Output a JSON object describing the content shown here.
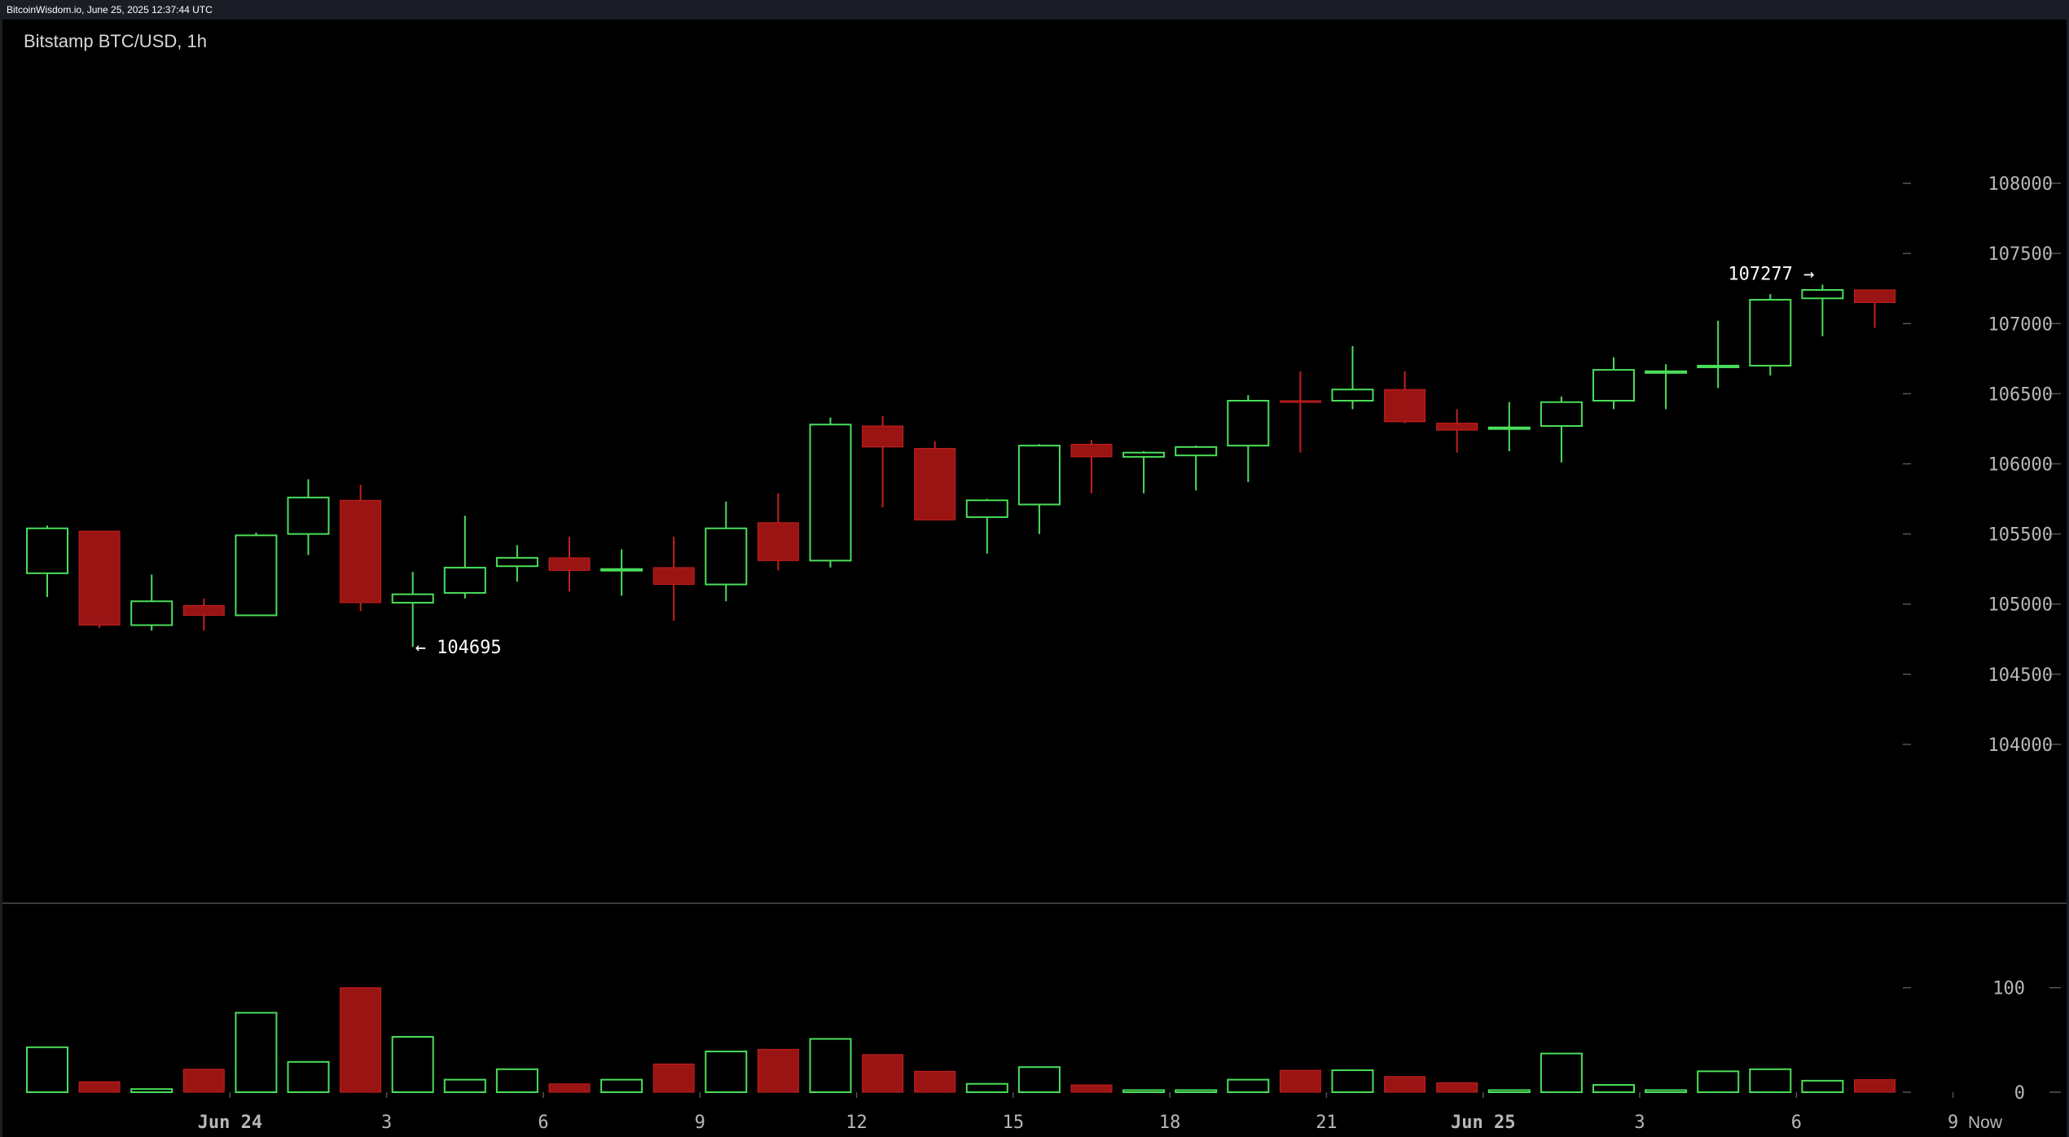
{
  "header": {
    "source_line": "BitcoinWisdom.io, June 25, 2025 12:37:44 UTC"
  },
  "chart_title": "Bitstamp BTC/USD, 1h",
  "colors": {
    "up": "#4ade5a",
    "down": "#9b1414",
    "background": "#000000",
    "frame": "#1a1d26"
  },
  "chart_data": {
    "type": "candlestick",
    "title": "Bitstamp BTC/USD, 1h",
    "price_axis": {
      "range": [
        103500,
        108500
      ],
      "ticks": [
        104000,
        104500,
        105000,
        105500,
        106000,
        106500,
        107000,
        107500,
        108000
      ]
    },
    "volume_axis": {
      "range": [
        0,
        180
      ],
      "ticks": [
        0,
        100
      ]
    },
    "x_ticks": [
      {
        "label": "Jun 24",
        "index": 3.5
      },
      {
        "label": "3",
        "index": 6.5
      },
      {
        "label": "6",
        "index": 9.5
      },
      {
        "label": "9",
        "index": 12.5
      },
      {
        "label": "12",
        "index": 15.5
      },
      {
        "label": "15",
        "index": 18.5
      },
      {
        "label": "18",
        "index": 21.5
      },
      {
        "label": "21",
        "index": 24.5
      },
      {
        "label": "Jun 25",
        "index": 27.5
      },
      {
        "label": "3",
        "index": 30.5
      },
      {
        "label": "6",
        "index": 33.5
      },
      {
        "label": "9",
        "index": 36.5
      }
    ],
    "now_label": "Now",
    "annotations": [
      {
        "text": "← 104695",
        "index": 7,
        "price": 104695
      },
      {
        "text": "107277 →",
        "index": 34,
        "price": 107277
      }
    ],
    "candles": [
      {
        "o": 105220,
        "h": 105560,
        "l": 105050,
        "c": 105540,
        "v": 43
      },
      {
        "o": 105520,
        "h": 105520,
        "l": 104830,
        "c": 104850,
        "v": 10
      },
      {
        "o": 104850,
        "h": 105210,
        "l": 104810,
        "c": 105020,
        "v": 3
      },
      {
        "o": 104990,
        "h": 105040,
        "l": 104810,
        "c": 104920,
        "v": 22
      },
      {
        "o": 104920,
        "h": 105510,
        "l": 104920,
        "c": 105490,
        "v": 76
      },
      {
        "o": 105500,
        "h": 105890,
        "l": 105350,
        "c": 105760,
        "v": 29
      },
      {
        "o": 105740,
        "h": 105850,
        "l": 104950,
        "c": 105010,
        "v": 100
      },
      {
        "o": 105010,
        "h": 105230,
        "l": 104695,
        "c": 105070,
        "v": 53
      },
      {
        "o": 105080,
        "h": 105630,
        "l": 105040,
        "c": 105260,
        "v": 12
      },
      {
        "o": 105270,
        "h": 105420,
        "l": 105160,
        "c": 105330,
        "v": 22
      },
      {
        "o": 105330,
        "h": 105480,
        "l": 105090,
        "c": 105240,
        "v": 8
      },
      {
        "o": 105240,
        "h": 105390,
        "l": 105060,
        "c": 105250,
        "v": 12
      },
      {
        "o": 105260,
        "h": 105480,
        "l": 104880,
        "c": 105140,
        "v": 27
      },
      {
        "o": 105140,
        "h": 105730,
        "l": 105020,
        "c": 105540,
        "v": 39
      },
      {
        "o": 105580,
        "h": 105790,
        "l": 105240,
        "c": 105310,
        "v": 41
      },
      {
        "o": 105310,
        "h": 106330,
        "l": 105260,
        "c": 106280,
        "v": 51
      },
      {
        "o": 106270,
        "h": 106340,
        "l": 105690,
        "c": 106120,
        "v": 36
      },
      {
        "o": 106110,
        "h": 106160,
        "l": 105600,
        "c": 105600,
        "v": 20
      },
      {
        "o": 105620,
        "h": 105750,
        "l": 105360,
        "c": 105740,
        "v": 8
      },
      {
        "o": 105710,
        "h": 106140,
        "l": 105500,
        "c": 106130,
        "v": 24
      },
      {
        "o": 106140,
        "h": 106170,
        "l": 105790,
        "c": 106050,
        "v": 7
      },
      {
        "o": 106050,
        "h": 106090,
        "l": 105790,
        "c": 106080,
        "v": 2
      },
      {
        "o": 106060,
        "h": 106130,
        "l": 105810,
        "c": 106120,
        "v": 2
      },
      {
        "o": 106130,
        "h": 106490,
        "l": 105870,
        "c": 106450,
        "v": 12
      },
      {
        "o": 106450,
        "h": 106660,
        "l": 106080,
        "c": 106440,
        "v": 21
      },
      {
        "o": 106450,
        "h": 106840,
        "l": 106390,
        "c": 106530,
        "v": 21
      },
      {
        "o": 106530,
        "h": 106660,
        "l": 106290,
        "c": 106300,
        "v": 15
      },
      {
        "o": 106290,
        "h": 106390,
        "l": 106080,
        "c": 106240,
        "v": 9
      },
      {
        "o": 106250,
        "h": 106440,
        "l": 106090,
        "c": 106260,
        "v": 2
      },
      {
        "o": 106270,
        "h": 106480,
        "l": 106010,
        "c": 106440,
        "v": 37
      },
      {
        "o": 106450,
        "h": 106760,
        "l": 106390,
        "c": 106670,
        "v": 7
      },
      {
        "o": 106660,
        "h": 106710,
        "l": 106390,
        "c": 106660,
        "v": 2
      },
      {
        "o": 106700,
        "h": 107020,
        "l": 106540,
        "c": 106700,
        "v": 20
      },
      {
        "o": 106700,
        "h": 107210,
        "l": 106630,
        "c": 107170,
        "v": 22
      },
      {
        "o": 107180,
        "h": 107277,
        "l": 106910,
        "c": 107240,
        "v": 11
      },
      {
        "o": 107240,
        "h": 107240,
        "l": 106970,
        "c": 107150,
        "v": 12
      }
    ]
  }
}
